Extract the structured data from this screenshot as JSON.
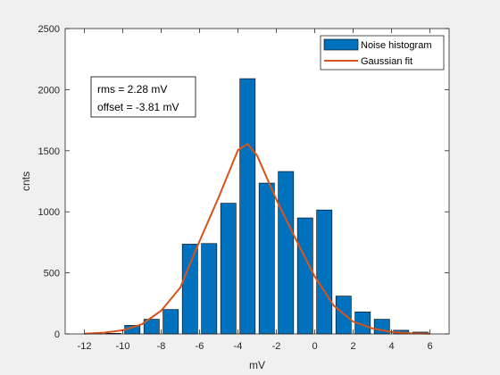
{
  "chart_data": {
    "type": "bar",
    "xlabel": "mV",
    "ylabel": "cnts",
    "xlim": [
      -13,
      7
    ],
    "ylim": [
      0,
      2500
    ],
    "xticks": [
      -12,
      -10,
      -8,
      -6,
      -4,
      -2,
      0,
      2,
      4,
      6
    ],
    "yticks": [
      0,
      500,
      1000,
      1500,
      2000,
      2500
    ],
    "xtick_labels": [
      "-12",
      "-10",
      "-8",
      "-6",
      "-4",
      "-2",
      "0",
      "2",
      "4",
      "6"
    ],
    "ytick_labels": [
      "0",
      "500",
      "1000",
      "1500",
      "2000",
      "2500"
    ],
    "grid": false,
    "legend_position": "top-right",
    "series": [
      {
        "name": "Noise histogram",
        "type": "bar",
        "color": "#0072bd",
        "x": [
          -11.5,
          -10.5,
          -9.5,
          -8.5,
          -7.5,
          -6.5,
          -5.5,
          -4.5,
          -3.5,
          -2.5,
          -1.5,
          -0.5,
          0.5,
          1.5,
          2.5,
          3.5,
          4.5,
          5.5
        ],
        "values": [
          2,
          5,
          70,
          120,
          200,
          735,
          740,
          1070,
          2090,
          1235,
          1330,
          950,
          1015,
          310,
          180,
          120,
          30,
          15
        ]
      },
      {
        "name": "Gaussian fit",
        "type": "line",
        "color": "#d95319",
        "x": [
          -12,
          -11,
          -10,
          -9,
          -8,
          -7,
          -6,
          -5,
          -4,
          -3.5,
          -3,
          -2,
          -1,
          0,
          1,
          2,
          3,
          4,
          5,
          6
        ],
        "values": [
          2,
          10,
          30,
          80,
          190,
          380,
          760,
          1120,
          1505,
          1555,
          1460,
          1100,
          780,
          470,
          230,
          100,
          45,
          15,
          5,
          2
        ]
      }
    ],
    "annotation": {
      "rms": "rms = 2.28 mV",
      "offset": "offset = -3.81 mV"
    }
  }
}
